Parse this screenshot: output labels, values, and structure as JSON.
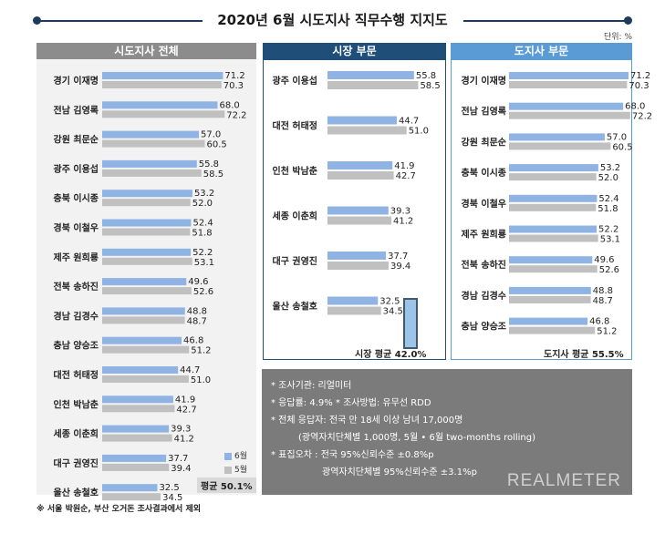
{
  "title": "2020년 6월 시도지사 직무수행 지지도",
  "unit": "단위: %",
  "colors": {
    "june": "#8fb4e3",
    "may": "#c0c0c0",
    "left_head": "#8c8c8c",
    "mid_head": "#1f4e79",
    "right_head": "#5b9bd5",
    "notes_bg": "#7b7b7b"
  },
  "legend": {
    "june": "6월",
    "may": "5월"
  },
  "chart_data": [
    {
      "type": "bar",
      "title": "시도지사 전체",
      "categories": [
        "경기 이재명",
        "전남 김영록",
        "강원 최문순",
        "광주 이용섭",
        "충북 이시종",
        "경북 이철우",
        "제주 원희룡",
        "전북 송하진",
        "경남 김경수",
        "충남 양승조",
        "대전 허태정",
        "인천 박남춘",
        "세종 이춘희",
        "대구 권영진",
        "울산 송철호"
      ],
      "series": [
        {
          "name": "6월",
          "values": [
            71.2,
            68.0,
            57.0,
            55.8,
            53.2,
            52.4,
            52.2,
            49.6,
            48.8,
            46.8,
            44.7,
            41.9,
            39.3,
            37.7,
            32.5
          ]
        },
        {
          "name": "5월",
          "values": [
            70.3,
            72.2,
            60.5,
            58.5,
            52.0,
            51.8,
            53.1,
            52.6,
            48.7,
            51.2,
            51.0,
            42.7,
            41.2,
            39.4,
            34.5
          ]
        }
      ],
      "average_label": "평균 50.1%"
    },
    {
      "type": "bar",
      "title": "시장 부문",
      "categories": [
        "광주 이용섭",
        "대전 허태정",
        "인천 박남춘",
        "세종 이춘희",
        "대구 권영진",
        "울산 송철호"
      ],
      "series": [
        {
          "name": "6월",
          "values": [
            55.8,
            44.7,
            41.9,
            39.3,
            37.7,
            32.5
          ]
        },
        {
          "name": "5월",
          "values": [
            58.5,
            51.0,
            42.7,
            41.2,
            39.4,
            34.5
          ]
        }
      ],
      "average_label": "시장 평균 42.0%"
    },
    {
      "type": "bar",
      "title": "도지사 부문",
      "categories": [
        "경기 이재명",
        "전남 김영록",
        "강원 최문순",
        "충북 이시종",
        "경북 이철우",
        "제주 원희룡",
        "전북 송하진",
        "경남 김경수",
        "충남 양승조"
      ],
      "series": [
        {
          "name": "6월",
          "values": [
            71.2,
            68.0,
            57.0,
            53.2,
            52.4,
            52.2,
            49.6,
            48.8,
            46.8
          ]
        },
        {
          "name": "5월",
          "values": [
            70.3,
            72.2,
            60.5,
            52.0,
            51.8,
            53.1,
            52.6,
            48.7,
            51.2
          ]
        }
      ],
      "average_label": "도지사 평균 55.5%"
    }
  ],
  "notes": [
    "* 조사기관: 리얼미터",
    "* 응답률: 4.9% * 조사방법: 유무선 RDD",
    "* 전체 응답자: 전국 만 18세 이상 남녀 17,000명",
    "(광역자치단체별 1,000명, 5월 • 6월 two-months rolling)",
    "* 표집오차 : 전국 95%신뢰수준 ±0.8%p",
    "광역자치단체별 95%신뢰수준 ±3.1%p"
  ],
  "brand": "REALMETER",
  "footnote": "※ 서울 박원순, 부산 오거돈 조사결과에서 제외"
}
